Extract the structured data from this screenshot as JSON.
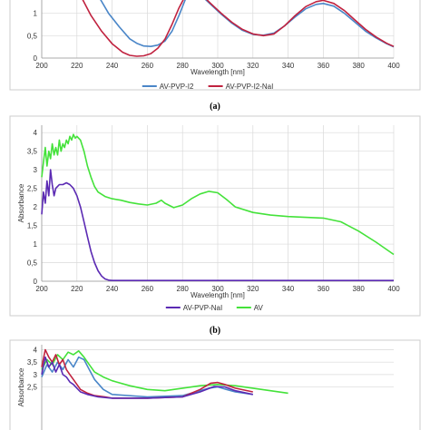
{
  "chart_data": [
    {
      "type": "line",
      "panel_label": "(a)",
      "xlabel": "Wavelength [nm]",
      "ylabel": "",
      "xlim": [
        200,
        400
      ],
      "ylim": [
        0,
        1.5
      ],
      "xticks": [
        200,
        220,
        240,
        260,
        280,
        300,
        320,
        340,
        360,
        380,
        400
      ],
      "yticks": [
        0,
        0.5,
        1
      ],
      "ytick_labels": [
        "0",
        "0,5",
        "1"
      ],
      "grid": true,
      "legend_position": "bottom",
      "series": [
        {
          "name": "AV-PVP-I2",
          "color": "#4a86c8",
          "x": [
            232,
            238,
            244,
            250,
            254,
            258,
            262,
            266,
            270,
            274,
            278,
            282,
            286,
            290,
            296,
            302,
            308,
            314,
            320,
            326,
            332,
            338,
            344,
            350,
            356,
            360,
            366,
            372,
            378,
            384,
            390,
            396,
            400
          ],
          "y": [
            1.4,
            1.0,
            0.7,
            0.43,
            0.33,
            0.27,
            0.26,
            0.29,
            0.38,
            0.6,
            0.95,
            1.35,
            1.5,
            1.42,
            1.2,
            0.98,
            0.78,
            0.62,
            0.53,
            0.51,
            0.56,
            0.72,
            0.92,
            1.1,
            1.2,
            1.22,
            1.16,
            1.0,
            0.8,
            0.6,
            0.45,
            0.32,
            0.25
          ]
        },
        {
          "name": "AV-PVP-I2-NaI",
          "color": "#c0223f",
          "x": [
            222,
            228,
            234,
            240,
            246,
            250,
            254,
            258,
            262,
            266,
            270,
            274,
            278,
            282,
            286,
            290,
            296,
            302,
            308,
            314,
            320,
            326,
            332,
            338,
            344,
            350,
            356,
            360,
            366,
            372,
            378,
            384,
            390,
            396,
            400
          ],
          "y": [
            1.4,
            0.95,
            0.6,
            0.32,
            0.13,
            0.06,
            0.04,
            0.05,
            0.1,
            0.22,
            0.42,
            0.75,
            1.12,
            1.42,
            1.5,
            1.45,
            1.22,
            1.0,
            0.8,
            0.64,
            0.54,
            0.5,
            0.54,
            0.72,
            0.95,
            1.15,
            1.26,
            1.29,
            1.22,
            1.06,
            0.85,
            0.64,
            0.47,
            0.33,
            0.26
          ]
        }
      ]
    },
    {
      "type": "line",
      "panel_label": "(b)",
      "xlabel": "Wavelength [nm]",
      "ylabel": "Absorbance",
      "xlim": [
        200,
        400
      ],
      "ylim": [
        0,
        4.2
      ],
      "xticks": [
        200,
        220,
        240,
        260,
        280,
        300,
        320,
        340,
        360,
        380,
        400
      ],
      "yticks": [
        0,
        0.5,
        1,
        1.5,
        2,
        2.5,
        3,
        3.5,
        4
      ],
      "ytick_labels": [
        "0",
        "0,5",
        "1",
        "1,5",
        "2",
        "2,5",
        "3",
        "3,5",
        "4"
      ],
      "grid": true,
      "legend_position": "bottom",
      "series": [
        {
          "name": "AV-PVP-NaI",
          "color": "#5b2ab3",
          "x": [
            200,
            201,
            202,
            203,
            204,
            205,
            206,
            207,
            208,
            210,
            212,
            214,
            216,
            218,
            220,
            222,
            224,
            226,
            228,
            230,
            232,
            234,
            236,
            238,
            240,
            245,
            260,
            300,
            350,
            400
          ],
          "y": [
            1.8,
            2.4,
            2.1,
            2.7,
            2.3,
            3.0,
            2.6,
            2.3,
            2.5,
            2.6,
            2.6,
            2.65,
            2.6,
            2.5,
            2.3,
            2.0,
            1.6,
            1.2,
            0.8,
            0.5,
            0.28,
            0.14,
            0.06,
            0.03,
            0.02,
            0.02,
            0.02,
            0.02,
            0.02,
            0.02
          ]
        },
        {
          "name": "AV",
          "color": "#44e23a",
          "x": [
            200,
            201,
            202,
            203,
            204,
            205,
            206,
            207,
            208,
            209,
            210,
            211,
            212,
            213,
            214,
            215,
            216,
            217,
            218,
            219,
            220,
            222,
            224,
            226,
            228,
            230,
            232,
            236,
            240,
            245,
            250,
            255,
            260,
            265,
            268,
            270,
            275,
            280,
            285,
            290,
            295,
            300,
            305,
            310,
            320,
            330,
            340,
            350,
            360,
            370,
            380,
            390,
            400
          ],
          "y": [
            2.8,
            3.2,
            3.6,
            3.1,
            3.5,
            3.3,
            3.7,
            3.4,
            3.6,
            3.4,
            3.8,
            3.5,
            3.7,
            3.6,
            3.8,
            3.7,
            3.9,
            3.8,
            3.95,
            3.85,
            3.9,
            3.8,
            3.5,
            3.1,
            2.8,
            2.55,
            2.4,
            2.28,
            2.22,
            2.18,
            2.12,
            2.08,
            2.05,
            2.1,
            2.18,
            2.1,
            1.98,
            2.05,
            2.22,
            2.35,
            2.42,
            2.38,
            2.2,
            2.0,
            1.85,
            1.78,
            1.74,
            1.72,
            1.7,
            1.6,
            1.35,
            1.05,
            0.72
          ]
        }
      ]
    },
    {
      "type": "line",
      "panel_label": "",
      "xlabel": "",
      "ylabel": "Absorbance",
      "xlim": [
        200,
        400
      ],
      "ylim": [
        0,
        4.2
      ],
      "xticks": [],
      "yticks": [
        2.5,
        3,
        3.5,
        4
      ],
      "ytick_labels": [
        "2,5",
        "3",
        "3,5",
        "4"
      ],
      "grid": true,
      "legend_position": "",
      "series": [
        {
          "name": "",
          "color": "#44e23a",
          "x": [
            200,
            203,
            206,
            209,
            212,
            215,
            218,
            221,
            224,
            227,
            230,
            235,
            240,
            250,
            260,
            270,
            280,
            290,
            300,
            310,
            320,
            330,
            340
          ],
          "y": [
            3.2,
            3.6,
            3.4,
            3.8,
            3.6,
            3.9,
            3.8,
            3.95,
            3.7,
            3.4,
            3.1,
            2.9,
            2.75,
            2.55,
            2.4,
            2.35,
            2.45,
            2.55,
            2.6,
            2.55,
            2.45,
            2.35,
            2.25
          ]
        },
        {
          "name": "",
          "color": "#4a86c8",
          "x": [
            200,
            203,
            206,
            209,
            212,
            215,
            218,
            221,
            224,
            227,
            230,
            235,
            240,
            260,
            280,
            295,
            300,
            305,
            310,
            320
          ],
          "y": [
            2.9,
            3.4,
            3.1,
            3.5,
            3.2,
            3.6,
            3.3,
            3.7,
            3.6,
            3.2,
            2.8,
            2.4,
            2.2,
            2.1,
            2.15,
            2.45,
            2.5,
            2.4,
            2.3,
            2.2
          ]
        },
        {
          "name": "",
          "color": "#c0223f",
          "x": [
            200,
            202,
            204,
            206,
            208,
            210,
            212,
            214,
            216,
            218,
            220,
            222,
            226,
            230,
            236,
            240,
            260,
            280,
            290,
            296,
            300,
            304,
            310,
            320
          ],
          "y": [
            3.3,
            4.0,
            3.7,
            3.5,
            3.8,
            3.4,
            3.6,
            3.2,
            3.0,
            2.8,
            2.6,
            2.4,
            2.25,
            2.15,
            2.1,
            2.05,
            2.05,
            2.1,
            2.4,
            2.65,
            2.68,
            2.6,
            2.45,
            2.3
          ]
        },
        {
          "name": "",
          "color": "#5b2ab3",
          "x": [
            200,
            202,
            204,
            206,
            208,
            210,
            212,
            214,
            216,
            218,
            220,
            222,
            226,
            232,
            240,
            260,
            280,
            290,
            298,
            304,
            310,
            320
          ],
          "y": [
            3.0,
            3.7,
            3.3,
            3.5,
            3.1,
            3.4,
            3.0,
            2.9,
            2.7,
            2.6,
            2.45,
            2.3,
            2.2,
            2.1,
            2.05,
            2.05,
            2.1,
            2.3,
            2.52,
            2.5,
            2.35,
            2.2
          ]
        }
      ]
    }
  ]
}
